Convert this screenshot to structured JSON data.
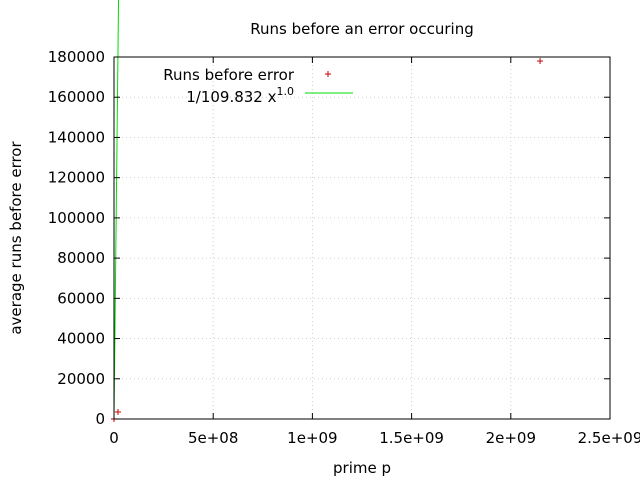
{
  "chart_data": {
    "type": "scatter",
    "title": "Runs before an error occuring",
    "xlabel": "prime p",
    "ylabel": "average runs before error",
    "xlim": [
      0,
      2500000000
    ],
    "ylim": [
      0,
      180000
    ],
    "xticks": [
      0,
      500000000,
      1000000000,
      1500000000,
      2000000000,
      2500000000
    ],
    "xtick_labels": [
      "0",
      "5e+08",
      "1e+09",
      "1.5e+09",
      "2e+09",
      "2.5e+09"
    ],
    "yticks": [
      0,
      20000,
      40000,
      60000,
      80000,
      100000,
      120000,
      140000,
      160000,
      180000
    ],
    "ytick_labels": [
      "0",
      "20000",
      "40000",
      "60000",
      "80000",
      "100000",
      "120000",
      "140000",
      "160000",
      "180000"
    ],
    "grid": true,
    "legend_position": "top-left",
    "series": [
      {
        "name": "Runs before error",
        "kind": "points",
        "marker": "+",
        "color": "#cc0000",
        "points": [
          {
            "x": 2,
            "y": 0
          },
          {
            "x": 3000,
            "y": 30
          },
          {
            "x": 20000000,
            "y": 3500
          },
          {
            "x": 2147483647,
            "y": 178000
          }
        ]
      },
      {
        "name_prefix": "1/109.832 x",
        "name_exponent": "1.0",
        "kind": "line",
        "color": "#00dd00",
        "coefficient": 0.009105,
        "exponent": 1.0,
        "x_range": [
          0,
          2147483647
        ]
      }
    ]
  }
}
